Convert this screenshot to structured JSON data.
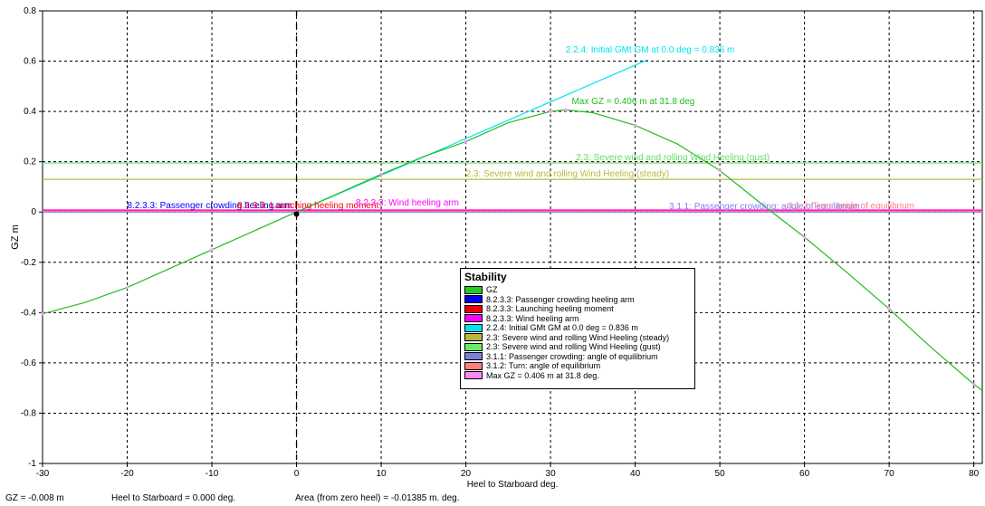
{
  "chart_data": {
    "type": "line",
    "xlabel": "Heel to Starboard   deg.",
    "ylabel": "GZ  m",
    "xlim": [
      -30,
      81
    ],
    "ylim": [
      -1,
      0.8
    ],
    "xticks": [
      "-30",
      "-20",
      "-10",
      "0",
      "10",
      "20",
      "30",
      "40",
      "50",
      "60",
      "70",
      "80"
    ],
    "yticks": [
      "-1",
      "-0.8",
      "-0.6",
      "-0.4",
      "-0.2",
      "0",
      "0.2",
      "0.4",
      "0.6",
      "0.8"
    ],
    "grid": true,
    "gz_curve": {
      "name": "GZ",
      "color": "#22bb22",
      "x": [
        -30,
        -25,
        -20,
        -15,
        -10,
        -5,
        0,
        5,
        10,
        15,
        20,
        25,
        30,
        31.8,
        35,
        40,
        45,
        50,
        55,
        60,
        65,
        70,
        75,
        80,
        81
      ],
      "y": [
        -0.405,
        -0.36,
        -0.3,
        -0.225,
        -0.15,
        -0.075,
        0,
        0.075,
        0.15,
        0.22,
        0.28,
        0.355,
        0.4,
        0.406,
        0.395,
        0.345,
        0.27,
        0.165,
        0.03,
        -0.1,
        -0.24,
        -0.385,
        -0.54,
        -0.685,
        -0.71
      ]
    },
    "series": [
      {
        "name": "8.2.3.3: Passenger crowding heeling arm",
        "color": "#0000ff",
        "value": 0.005,
        "label_x": -20
      },
      {
        "name": "8.2.3.3: Launching heeling moment",
        "color": "#ff0000",
        "value": 0.005,
        "label_x": -7
      },
      {
        "name": "8.2.3.3: Wind heeling arm",
        "color": "#ff00ff",
        "value": 0.008,
        "label_x": 7
      },
      {
        "name": "2.3: Severe wind and rolling Wind Heeling (steady)",
        "color": "#b8b840",
        "value": 0.13,
        "label_x": 20
      },
      {
        "name": "2.3: Severe wind and rolling Wind Heeling (gust)",
        "color": "#66dd66",
        "value": 0.195,
        "label_x": 33
      },
      {
        "name": "3.1.1: Passenger crowding: angle of equilibrium",
        "color": "#7f7fff",
        "value": 0.0,
        "label_x": 44
      },
      {
        "name": "3.1.2: Turn: angle of equilibrium",
        "color": "#ff7f7f",
        "value": 0.003,
        "label_x": 58
      }
    ],
    "gm_line": {
      "name": "2.2.4: Initial GMt GM at 0.0 deg = 0.836 m",
      "color": "#00e5ee",
      "x": [
        0,
        41.5
      ],
      "y": [
        0,
        0.606
      ],
      "label_x": 31.8,
      "label_y": 0.635
    },
    "max_gz": {
      "name": "Max GZ = 0.406 m at 31.8 deg.",
      "label": "Max GZ = 0.406 m at 31.8 deg",
      "color": "#22bb22",
      "x": 31.8,
      "y": 0.406
    },
    "cursor_x": 0
  },
  "legend": {
    "title": "Stability",
    "items": [
      {
        "label": "GZ",
        "color": "#22cc22"
      },
      {
        "label": "8.2.3.3: Passenger crowding heeling arm",
        "color": "#0000ee"
      },
      {
        "label": "8.2.3.3: Launching heeling moment",
        "color": "#ee0000"
      },
      {
        "label": "8.2.3.3: Wind heeling arm",
        "color": "#ff00ff"
      },
      {
        "label": "2.2.4: Initial GMt GM at 0.0 deg = 0.836 m",
        "color": "#00e5ee"
      },
      {
        "label": "2.3: Severe wind and rolling Wind Heeling (steady)",
        "color": "#b8b840"
      },
      {
        "label": "2.3: Severe wind and rolling Wind Heeling (gust)",
        "color": "#66ee66"
      },
      {
        "label": "3.1.1: Passenger crowding: angle of equilibrium",
        "color": "#7f7fdd"
      },
      {
        "label": "3.1.2: Turn: angle of equilibrium",
        "color": "#ff7f7f"
      },
      {
        "label": "Max GZ = 0.406 m at 31.8 deg.",
        "color": "#ff88ee"
      }
    ]
  },
  "status": {
    "gz": "GZ =  -0.008 m",
    "heel": "Heel to Starboard =  0.000  deg.",
    "area": "Area (from zero heel) = -0.01385 m. deg."
  }
}
